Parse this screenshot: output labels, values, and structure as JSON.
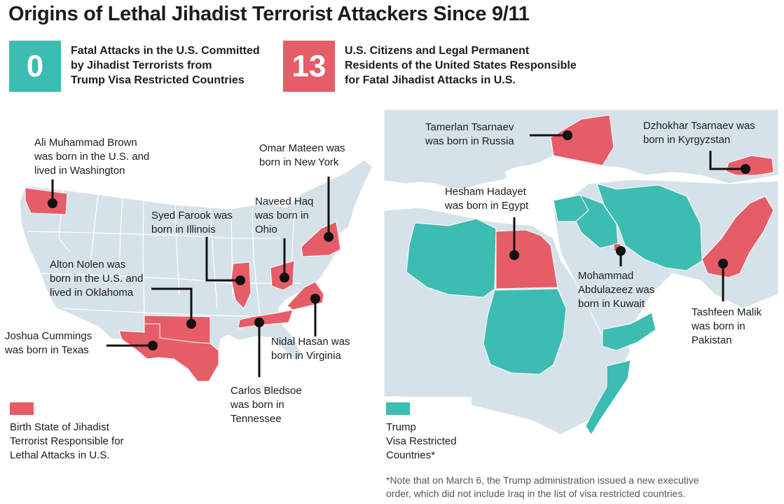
{
  "title": "Origins of Lethal Jihadist Terrorist Attackers Since 9/11",
  "stats": [
    {
      "value": "0",
      "lines": [
        "Fatal Attacks in the U.S. Committed",
        "by Jihadist Terrorists from",
        "Trump Visa Restricted Countries"
      ],
      "color": "#3dbcb1"
    },
    {
      "value": "13",
      "lines": [
        "U.S. Citizens and Legal Permanent",
        "Residents of the United States Responsible",
        "for Fatal Jihadist Attacks in U.S."
      ],
      "color": "#e55d67"
    }
  ],
  "us_map": {
    "highlighted_states": [
      "Washington",
      "Illinois",
      "Ohio",
      "New York",
      "Oklahoma",
      "Texas",
      "Tennessee",
      "Virginia"
    ],
    "annotations": {
      "brown": [
        "Ali Muhammad Brown",
        "was born in the U.S. and",
        "lived in Washington"
      ],
      "mateen": [
        "Omar Mateen was",
        "born in New York"
      ],
      "haq": [
        "Naveed Haq",
        "was born in",
        "Ohio"
      ],
      "farook": [
        "Syed Farook was",
        "born in Illinois"
      ],
      "nolen": [
        "Alton Nolen was",
        "born in the U.S. and",
        "lived in Oklahoma"
      ],
      "cummings": [
        "Joshua Cummings",
        "was born in Texas"
      ],
      "hasan": [
        "Nidal Hasan was",
        "born in Virginia"
      ],
      "bledsoe": [
        "Carlos Bledsoe",
        "was born in",
        "Tennessee"
      ]
    },
    "legend": {
      "lines": [
        "Birth State of Jihadist",
        "Terrorist Responsible for",
        "Lethal Attacks in U.S."
      ],
      "color": "#e55d67"
    }
  },
  "world_map": {
    "highlighted_birth_countries": [
      "Russia",
      "Kyrgyzstan",
      "Egypt",
      "Kuwait",
      "Pakistan"
    ],
    "restricted_countries": [
      "Libya",
      "Sudan",
      "Somalia",
      "Yemen",
      "Iran",
      "Iraq",
      "Syria"
    ],
    "annotations": {
      "tamerlan": [
        "Tamerlan Tsarnaev",
        "was born in Russia"
      ],
      "dzhokhar": [
        "Dzhokhar Tsarnaev was",
        "born in Kyrgyzstan"
      ],
      "hadayet": [
        "Hesham Hadayet",
        "was born in Egypt"
      ],
      "abdulazeez": [
        "Mohammad",
        "Abdulazeez was",
        "born in Kuwait"
      ],
      "malik": [
        "Tashfeen Malik",
        "was born in",
        "Pakistan"
      ]
    },
    "legend": {
      "lines": [
        "Trump",
        "Visa Restricted",
        "Countries*"
      ],
      "color": "#3dbcb1"
    }
  },
  "footnote": [
    "*Note that on March 6, the Trump administration issued a new executive",
    "order, which did not include Iraq in the list of visa restricted countries."
  ],
  "colors": {
    "red": "#e55d67",
    "teal": "#3dbcb1",
    "land": "#d5e2ea",
    "border": "#ffffff"
  }
}
